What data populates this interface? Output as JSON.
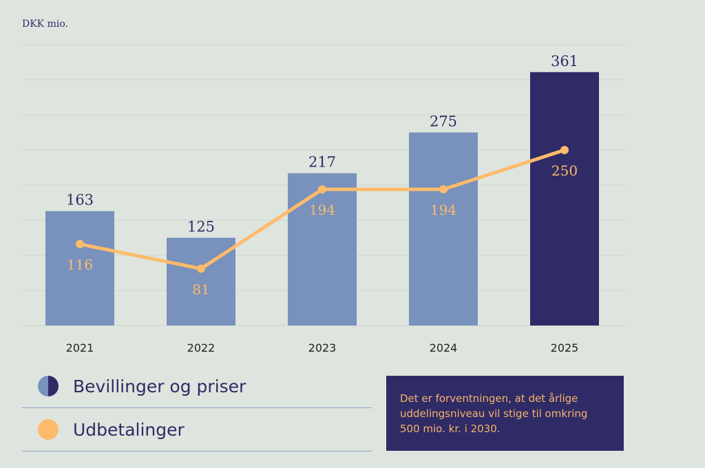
{
  "unit_label": "DKK mio.",
  "legend": [
    {
      "label": "Bevillinger og priser",
      "icon": "half-circle-icon"
    },
    {
      "label": "Udbetalinger",
      "icon": "circle-icon"
    }
  ],
  "note": "Det er forventningen, at det årlige uddelingsniveau vil stige til omkring 500 mio. kr. i 2030.",
  "colors": {
    "bar": "#7891bd",
    "bar_highlight": "#2f2b66",
    "line": "#fdbb6b",
    "text_dark": "#2f2b66",
    "grid": "#d3dad4"
  },
  "chart_data": {
    "type": "bar",
    "title": "",
    "xlabel": "",
    "ylabel": "DKK mio.",
    "categories": [
      "2021",
      "2022",
      "2023",
      "2024",
      "2025"
    ],
    "series": [
      {
        "name": "Bevillinger og priser",
        "type": "bar",
        "values": [
          163,
          125,
          217,
          275,
          361
        ],
        "highlight_index": 4
      },
      {
        "name": "Udbetalinger",
        "type": "line",
        "values": [
          116,
          81,
          194,
          194,
          250
        ]
      }
    ],
    "ylim": [
      0,
      400
    ],
    "grid": true,
    "grid_step": 50,
    "legend_position": "bottom-left"
  }
}
